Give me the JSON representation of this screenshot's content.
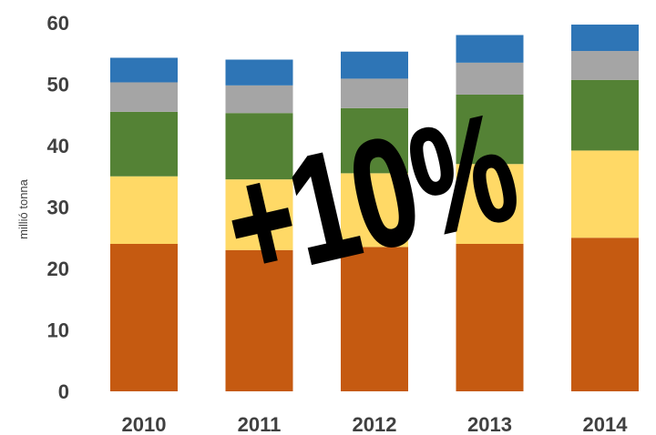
{
  "chart_data": {
    "type": "bar",
    "stacked": true,
    "categories": [
      "2010",
      "2011",
      "2012",
      "2013",
      "2014"
    ],
    "series": [
      {
        "color": "#C55A11",
        "values": [
          24,
          23,
          23.5,
          24,
          25
        ]
      },
      {
        "color": "#FFD966",
        "values": [
          11,
          11.5,
          12,
          13,
          14.2
        ]
      },
      {
        "color": "#548235",
        "values": [
          10.5,
          10.8,
          10.6,
          11.3,
          11.5
        ]
      },
      {
        "color": "#A5A5A5",
        "values": [
          4.8,
          4.5,
          4.8,
          5.2,
          4.7
        ]
      },
      {
        "color": "#2E75B6",
        "values": [
          4,
          4.2,
          4.4,
          4.5,
          4.3
        ]
      }
    ],
    "ylabel": "millió tonna",
    "ylim": [
      0,
      60
    ],
    "yticks": [
      0,
      10,
      20,
      30,
      40,
      50,
      60
    ],
    "grid": false,
    "annotation": "+10%"
  }
}
